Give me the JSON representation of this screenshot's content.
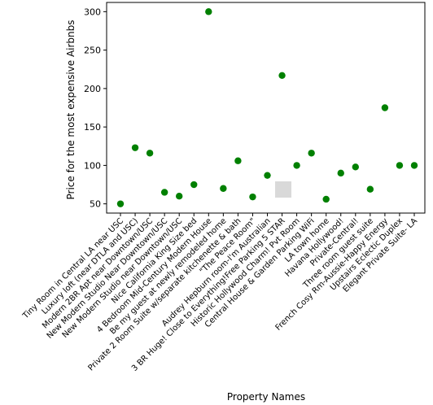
{
  "chart_data": {
    "type": "scatter",
    "title": "",
    "xlabel": "Property Names",
    "ylabel": "Price for the most expensive Airbnbs",
    "ylim": [
      38,
      312
    ],
    "yticks": [
      50,
      100,
      150,
      200,
      250,
      300
    ],
    "grid": false,
    "marker_color": "#008000",
    "categories": [
      "Tiny Room in Central LA near USC",
      "Luxury loft (near DTLA and USC)",
      "Modern 2BR Apt near Downtown/USC",
      "New Modern Studio Near Downtown/USC",
      "New Modern Studio near Downtown/USC",
      "Nice California King Size bed",
      "4 Bedroom Mid-Century Modern House",
      "Be my guest at newly remodeled home",
      "Private 2 Room Suite w/separate kitchenette & bath",
      "\"The Peace Room\"",
      "Audrey Hepburn room-I'm Australian",
      "3 BR Huge! Close to Everything!Free Parking 5 STAR",
      "Historic Hollywood Charm! Pvt Room",
      "Central House & Garden Parking WiFi",
      "LA town home",
      "Havana Hollywood!",
      "Private-Central!",
      "Three room guest suite",
      "French Cosy Rm-Aussie-Happy Energy",
      "Upstairs Eclectic Duplex",
      "Elegant Private Suite- LA"
    ],
    "values": [
      50,
      123,
      116,
      65,
      60,
      75,
      300,
      70,
      106,
      59,
      87,
      217,
      100,
      116,
      56,
      90,
      98,
      69,
      175,
      100,
      100
    ]
  }
}
